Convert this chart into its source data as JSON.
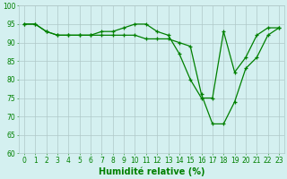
{
  "line1_x": [
    0,
    1,
    2,
    3,
    4,
    5,
    6,
    7,
    8,
    9,
    10,
    11,
    12,
    13,
    14,
    15,
    16,
    17,
    18,
    19,
    20,
    21,
    22,
    23
  ],
  "line1_y": [
    95,
    95,
    93,
    92,
    92,
    92,
    92,
    93,
    93,
    94,
    95,
    95,
    93,
    92,
    87,
    80,
    75,
    75,
    93,
    82,
    86,
    92,
    94,
    94
  ],
  "line2_x": [
    0,
    1,
    2,
    3,
    4,
    5,
    6,
    7,
    8,
    9,
    10,
    11,
    12,
    13,
    14,
    15,
    16,
    17,
    18,
    19,
    20,
    21,
    22,
    23
  ],
  "line2_y": [
    95,
    95,
    93,
    92,
    92,
    92,
    92,
    92,
    92,
    92,
    92,
    91,
    91,
    91,
    90,
    89,
    76,
    68,
    68,
    74,
    83,
    86,
    92,
    94
  ],
  "line_color": "#008000",
  "bg_color": "#d4f0f0",
  "grid_color": "#b0c8c8",
  "xlabel": "Humidité relative (%)",
  "xlim": [
    -0.5,
    23.5
  ],
  "ylim": [
    60,
    100
  ],
  "yticks": [
    60,
    65,
    70,
    75,
    80,
    85,
    90,
    95,
    100
  ],
  "xticks": [
    0,
    1,
    2,
    3,
    4,
    5,
    6,
    7,
    8,
    9,
    10,
    11,
    12,
    13,
    14,
    15,
    16,
    17,
    18,
    19,
    20,
    21,
    22,
    23
  ],
  "marker": "+",
  "marker_size": 3.5,
  "linewidth": 0.9,
  "xlabel_fontsize": 7,
  "tick_fontsize": 5.5
}
